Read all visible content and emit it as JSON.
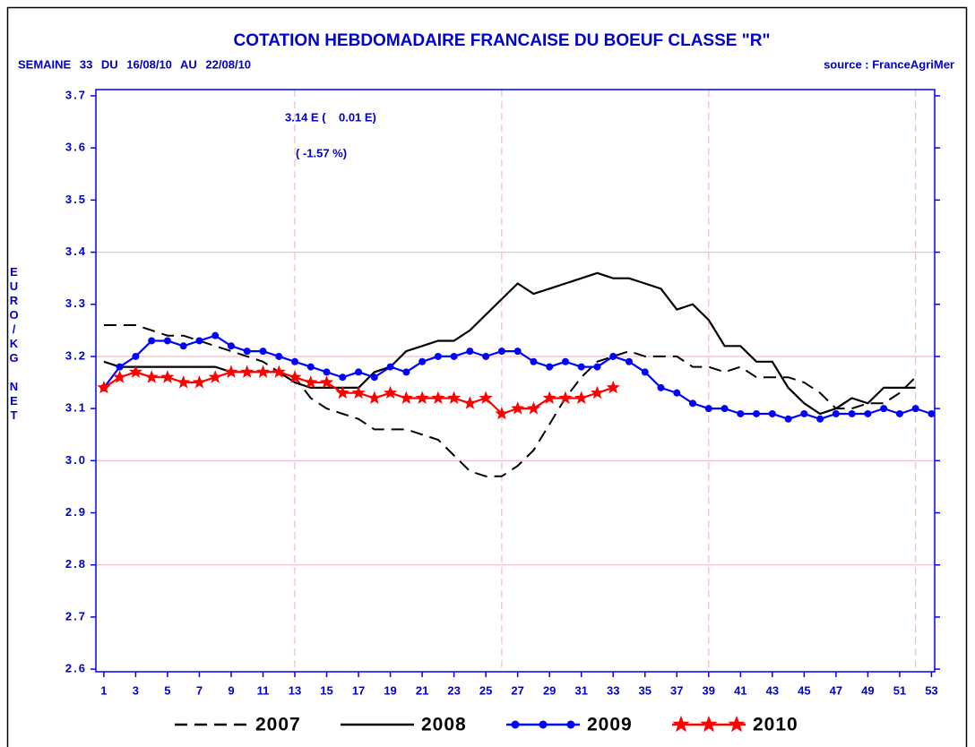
{
  "chart_data": {
    "type": "line",
    "title": "COTATION HEBDOMADAIRE FRANCAISE DU BOEUF CLASSE \"R\"",
    "subtitle": "SEMAINE 33 DU 16/08/10 AU 22/08/10",
    "source": "source : FranceAgriMer",
    "annotations": [
      "3.14 E (    0.01 E)",
      "( -1.57 %)"
    ],
    "y_label": "EURO/KG NET",
    "x": [
      1,
      2,
      3,
      4,
      5,
      6,
      7,
      8,
      9,
      10,
      11,
      12,
      13,
      14,
      15,
      16,
      17,
      18,
      19,
      20,
      21,
      22,
      23,
      24,
      25,
      26,
      27,
      28,
      29,
      30,
      31,
      32,
      33,
      34,
      35,
      36,
      37,
      38,
      39,
      40,
      41,
      42,
      43,
      44,
      45,
      46,
      47,
      48,
      49,
      50,
      51,
      52,
      53
    ],
    "xlim": [
      0.5,
      53.2
    ],
    "xticks": [
      1,
      3,
      5,
      7,
      9,
      11,
      13,
      15,
      17,
      19,
      21,
      23,
      25,
      27,
      29,
      31,
      33,
      35,
      37,
      39,
      41,
      43,
      45,
      47,
      49,
      51,
      53
    ],
    "ylim": [
      2.595,
      3.712
    ],
    "yticks": [
      2.6,
      2.7,
      2.8,
      2.9,
      {
        "value": 3,
        "label": "3.0"
      },
      3.1,
      3.2,
      3.3,
      3.4,
      3.5,
      3.6,
      3.7
    ],
    "hgrid": [
      2.8,
      3.0,
      3.2,
      3.4
    ],
    "vgrid": [
      13,
      26,
      39,
      52
    ],
    "series": [
      {
        "name": "2007",
        "color": "#000000",
        "dash": true,
        "marker": "none",
        "values": [
          3.26,
          3.26,
          3.26,
          3.25,
          3.24,
          3.24,
          3.23,
          3.22,
          3.21,
          3.2,
          3.19,
          3.17,
          3.16,
          3.12,
          3.1,
          3.09,
          3.08,
          3.06,
          3.06,
          3.06,
          3.05,
          3.04,
          3.01,
          2.98,
          2.97,
          2.97,
          2.99,
          3.02,
          3.07,
          3.12,
          3.16,
          3.19,
          3.2,
          3.21,
          3.2,
          3.2,
          3.2,
          3.18,
          3.18,
          3.17,
          3.18,
          3.16,
          3.16,
          3.16,
          3.15,
          3.13,
          3.1,
          3.1,
          3.11,
          3.11,
          3.13,
          3.16,
          null
        ]
      },
      {
        "name": "2008",
        "color": "#000000",
        "dash": false,
        "marker": "none",
        "values": [
          3.19,
          3.18,
          3.18,
          3.18,
          3.18,
          3.18,
          3.18,
          3.18,
          3.17,
          3.17,
          3.17,
          3.17,
          3.15,
          3.14,
          3.14,
          3.14,
          3.14,
          3.17,
          3.18,
          3.21,
          3.22,
          3.23,
          3.23,
          3.25,
          3.28,
          3.31,
          3.34,
          3.32,
          3.33,
          3.34,
          3.35,
          3.36,
          3.35,
          3.35,
          3.34,
          3.33,
          3.29,
          3.3,
          3.27,
          3.22,
          3.22,
          3.19,
          3.19,
          3.14,
          3.11,
          3.09,
          3.1,
          3.12,
          3.11,
          3.14,
          3.14,
          3.14,
          null
        ]
      },
      {
        "name": "2009",
        "color": "#0000ff",
        "dash": false,
        "marker": "circle",
        "values": [
          3.14,
          3.18,
          3.2,
          3.23,
          3.23,
          3.22,
          3.23,
          3.24,
          3.22,
          3.21,
          3.21,
          3.2,
          3.19,
          3.18,
          3.17,
          3.16,
          3.17,
          3.16,
          3.18,
          3.17,
          3.19,
          3.2,
          3.2,
          3.21,
          3.2,
          3.21,
          3.21,
          3.19,
          3.18,
          3.19,
          3.18,
          3.18,
          3.2,
          3.19,
          3.17,
          3.14,
          3.13,
          3.11,
          3.1,
          3.1,
          3.09,
          3.09,
          3.09,
          3.08,
          3.09,
          3.08,
          3.09,
          3.09,
          3.09,
          3.1,
          3.09,
          3.1,
          3.09
        ]
      },
      {
        "name": "2010",
        "color": "#ff0000",
        "dash": false,
        "marker": "star",
        "values": [
          3.14,
          3.16,
          3.17,
          3.16,
          3.16,
          3.15,
          3.15,
          3.16,
          3.17,
          3.17,
          3.17,
          3.17,
          3.16,
          3.15,
          3.15,
          3.13,
          3.13,
          3.12,
          3.13,
          3.12,
          3.12,
          3.12,
          3.12,
          3.11,
          3.12,
          3.09,
          3.1,
          3.1,
          3.12,
          3.12,
          3.12,
          3.13,
          3.14,
          null,
          null,
          null,
          null,
          null,
          null,
          null,
          null,
          null,
          null,
          null,
          null,
          null,
          null,
          null,
          null,
          null,
          null,
          null,
          null
        ]
      }
    ]
  }
}
